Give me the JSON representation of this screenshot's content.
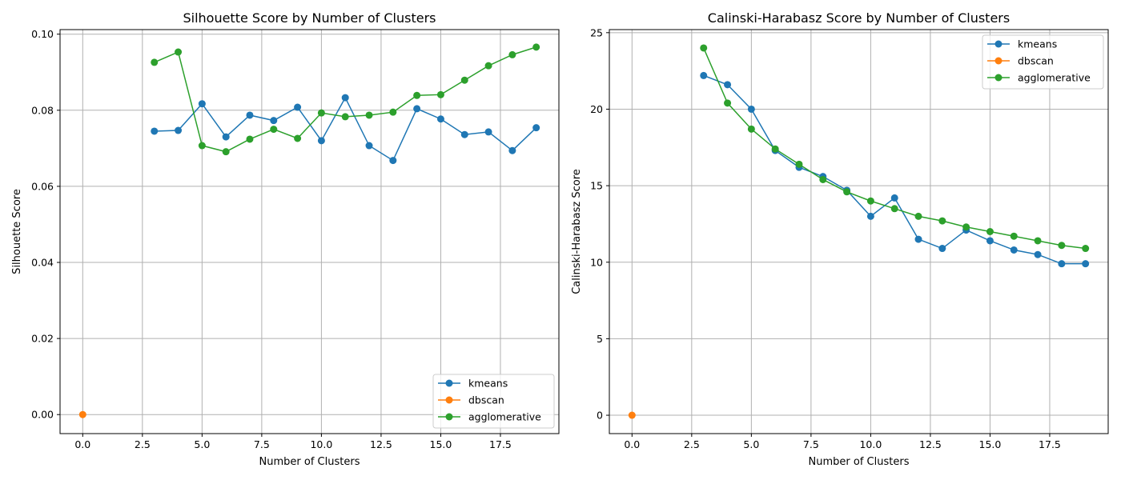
{
  "chart_data": [
    {
      "type": "line",
      "title": "Silhouette Score by Number of Clusters",
      "xlabel": "Number of Clusters",
      "ylabel": "Silhouette Score",
      "xlim": [
        -0.95,
        19.95
      ],
      "ylim": [
        -0.005,
        0.1012
      ],
      "xticks": [
        0.0,
        2.5,
        5.0,
        7.5,
        10.0,
        12.5,
        15.0,
        17.5
      ],
      "xtick_labels": [
        "0.0",
        "2.5",
        "5.0",
        "7.5",
        "10.0",
        "12.5",
        "15.0",
        "17.5"
      ],
      "yticks": [
        0.0,
        0.02,
        0.04,
        0.06,
        0.08,
        0.1
      ],
      "ytick_labels": [
        "0.00",
        "0.02",
        "0.04",
        "0.06",
        "0.08",
        "0.10"
      ],
      "grid": true,
      "legend_position": "lower-right",
      "series": [
        {
          "name": "kmeans",
          "color": "#1f77b4",
          "x": [
            3,
            4,
            5,
            6,
            7,
            8,
            9,
            10,
            11,
            12,
            13,
            14,
            15,
            16,
            17,
            18,
            19
          ],
          "y": [
            0.0745,
            0.0747,
            0.0817,
            0.073,
            0.0787,
            0.0773,
            0.0808,
            0.072,
            0.0833,
            0.0707,
            0.0668,
            0.0804,
            0.0777,
            0.0736,
            0.0743,
            0.0694,
            0.0754
          ]
        },
        {
          "name": "dbscan",
          "color": "#ff7f0e",
          "x": [
            0
          ],
          "y": [
            0.0
          ]
        },
        {
          "name": "agglomerative",
          "color": "#2ca02c",
          "x": [
            3,
            4,
            5,
            6,
            7,
            8,
            9,
            10,
            11,
            12,
            13,
            14,
            15,
            16,
            17,
            18,
            19
          ],
          "y": [
            0.0926,
            0.0953,
            0.0707,
            0.0691,
            0.0724,
            0.075,
            0.0726,
            0.0793,
            0.0783,
            0.0787,
            0.0795,
            0.0839,
            0.0841,
            0.0879,
            0.0917,
            0.0946,
            0.0966
          ]
        }
      ]
    },
    {
      "type": "line",
      "title": "Calinski-Harabasz Score by Number of Clusters",
      "xlabel": "Number of Clusters",
      "ylabel": "Calinski-Harabasz Score",
      "xlim": [
        -0.95,
        19.95
      ],
      "ylim": [
        -1.2,
        25.2
      ],
      "xticks": [
        0.0,
        2.5,
        5.0,
        7.5,
        10.0,
        12.5,
        15.0,
        17.5
      ],
      "xtick_labels": [
        "0.0",
        "2.5",
        "5.0",
        "7.5",
        "10.0",
        "12.5",
        "15.0",
        "17.5"
      ],
      "yticks": [
        0,
        5,
        10,
        15,
        20,
        25
      ],
      "ytick_labels": [
        "0",
        "5",
        "10",
        "15",
        "20",
        "25"
      ],
      "grid": true,
      "legend_position": "upper-right",
      "series": [
        {
          "name": "kmeans",
          "color": "#1f77b4",
          "x": [
            3,
            4,
            5,
            6,
            7,
            8,
            9,
            10,
            11,
            12,
            13,
            14,
            15,
            16,
            17,
            18,
            19
          ],
          "y": [
            22.2,
            21.6,
            20.0,
            17.3,
            16.2,
            15.6,
            14.7,
            13.0,
            14.2,
            11.5,
            10.9,
            12.1,
            11.4,
            10.8,
            10.5,
            9.9,
            9.9
          ]
        },
        {
          "name": "dbscan",
          "color": "#ff7f0e",
          "x": [
            0
          ],
          "y": [
            0
          ]
        },
        {
          "name": "agglomerative",
          "color": "#2ca02c",
          "x": [
            3,
            4,
            5,
            6,
            7,
            8,
            9,
            10,
            11,
            12,
            13,
            14,
            15,
            16,
            17,
            18,
            19
          ],
          "y": [
            24.0,
            20.4,
            18.7,
            17.4,
            16.4,
            15.4,
            14.6,
            14.0,
            13.5,
            13.0,
            12.7,
            12.3,
            12.0,
            11.7,
            11.4,
            11.1,
            10.9
          ]
        }
      ]
    }
  ]
}
